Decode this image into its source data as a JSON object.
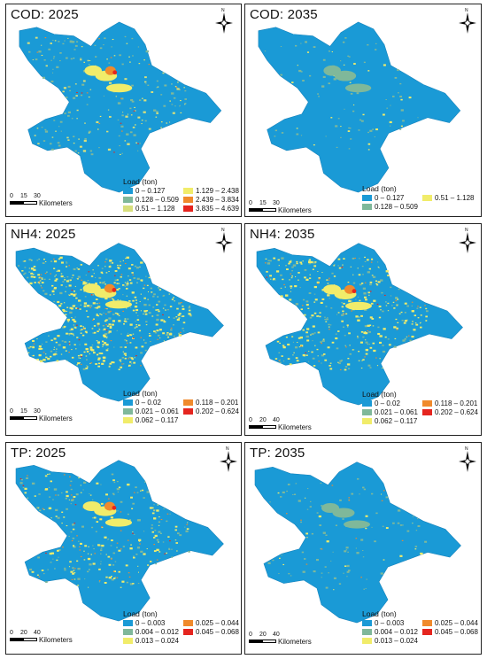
{
  "colors": {
    "base": "#1a9ad6",
    "c1": "#7fb89a",
    "c2": "#d8df7c",
    "c3": "#f1ec6a",
    "c4": "#f08a2c",
    "c5": "#e5251f",
    "bg": "#ffffff"
  },
  "icons": {
    "north_arrow": "north-arrow-icon",
    "north_letter": "N"
  },
  "legend_title": "Load (ton)",
  "panels": [
    {
      "title": "COD: 2025",
      "legend": [
        "0 – 0.127",
        "0.128 – 0.509",
        "0.51 – 1.128",
        "1.129 – 2.438",
        "2.439 – 3.834",
        "3.835 – 4.639"
      ],
      "scale": {
        "ticks": [
          "0",
          "15",
          "30"
        ],
        "unit": "Kilometers"
      }
    },
    {
      "title": "COD: 2035",
      "legend": [
        "0 – 0.127",
        "0.128 – 0.509",
        "0.51 – 1.128"
      ],
      "scale": {
        "ticks": [
          "0",
          "15",
          "30"
        ],
        "unit": "Kilometers"
      }
    },
    {
      "title": "NH4: 2025",
      "legend": [
        "0 – 0.02",
        "0.021 – 0.061",
        "0.062 – 0.117",
        "0.118 – 0.201",
        "0.202 – 0.624"
      ],
      "scale": {
        "ticks": [
          "0",
          "15",
          "30"
        ],
        "unit": "Kilometers"
      }
    },
    {
      "title": "NH4: 2035",
      "legend": [
        "0 – 0.02",
        "0.021 – 0.061",
        "0.062 – 0.117",
        "0.118 – 0.201",
        "0.202 – 0.624"
      ],
      "scale": {
        "ticks": [
          "0",
          "20",
          "40"
        ],
        "unit": "Kilometers"
      }
    },
    {
      "title": "TP: 2025",
      "legend": [
        "0 – 0.003",
        "0.004 – 0.012",
        "0.013 – 0.024",
        "0.025 – 0.044",
        "0.045 – 0.068"
      ],
      "scale": {
        "ticks": [
          "0",
          "20",
          "40"
        ],
        "unit": "Kilometers"
      }
    },
    {
      "title": "TP: 2035",
      "legend": [
        "0 – 0.003",
        "0.004 – 0.012",
        "0.013 – 0.024",
        "0.025 – 0.044",
        "0.045 – 0.068"
      ],
      "scale": {
        "ticks": [
          "0",
          "20",
          "40"
        ],
        "unit": "Kilometers"
      }
    }
  ]
}
